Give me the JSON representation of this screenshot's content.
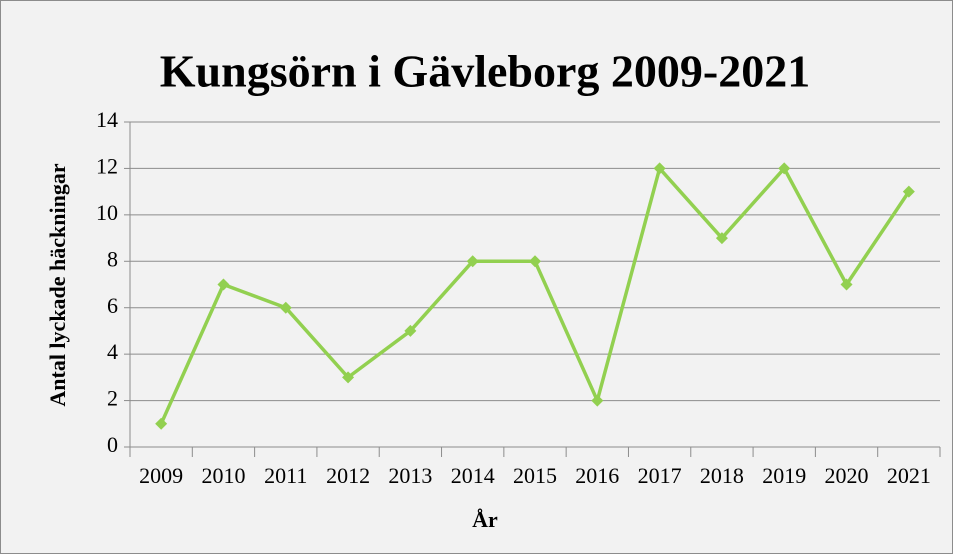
{
  "chart_data": {
    "type": "line",
    "title": "Kungsörn i Gävleborg 2009-2021",
    "x_label": "År",
    "y_label": "Antal lyckade häckningar",
    "categories": [
      "2009",
      "2010",
      "2011",
      "2012",
      "2013",
      "2014",
      "2015",
      "2016",
      "2017",
      "2018",
      "2019",
      "2020",
      "2021"
    ],
    "values": [
      1,
      7,
      6,
      3,
      5,
      8,
      8,
      2,
      12,
      9,
      12,
      7,
      11
    ],
    "color": "#92d050",
    "ylim": [
      0,
      14
    ],
    "yticks": [
      0,
      2,
      4,
      6,
      8,
      10,
      12,
      14
    ],
    "grid": true
  }
}
